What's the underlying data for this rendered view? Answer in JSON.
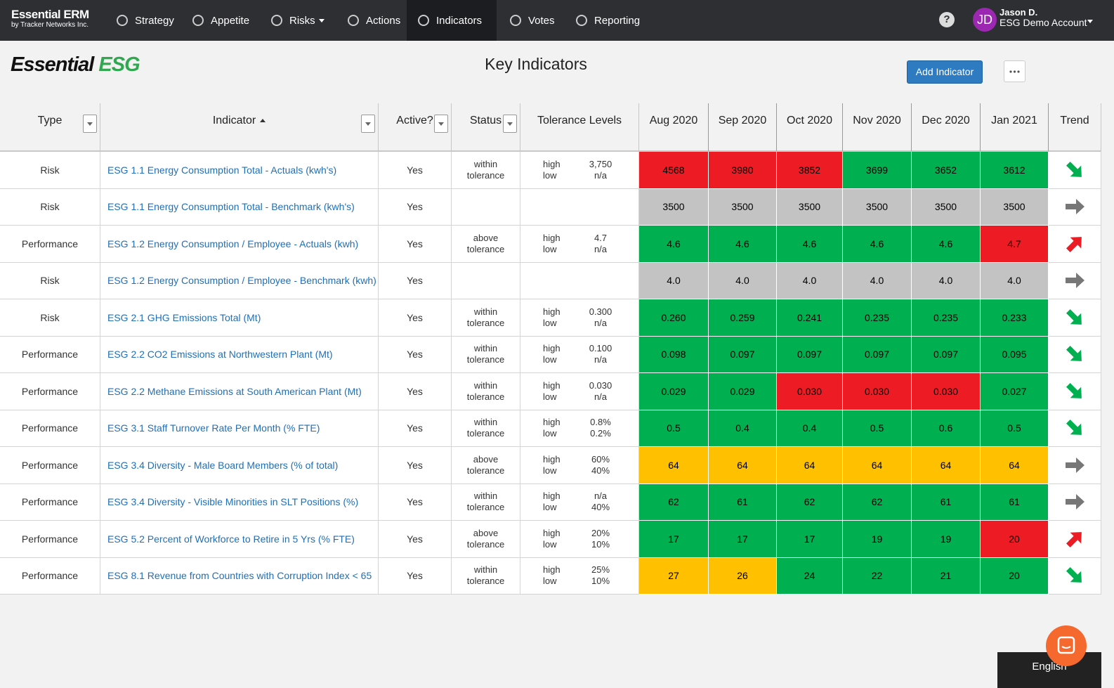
{
  "nav": {
    "brand": "Essential ERM",
    "brand_sub": "by Tracker Networks Inc.",
    "items": [
      "Strategy",
      "Appetite",
      "Risks",
      "Actions",
      "Indicators",
      "Votes",
      "Reporting"
    ],
    "active": 4,
    "dropdown": 2,
    "user": {
      "initials": "JD",
      "name": "Jason D.",
      "account": "ESG Demo Account"
    }
  },
  "header": {
    "logo": [
      "Essential",
      "ESG"
    ],
    "title": "Key Indicators",
    "button": "Add Indicator"
  },
  "table": {
    "columns": [
      "Type",
      "Indicator",
      "Active?",
      "Status",
      "Tolerance Levels",
      "Aug 2020",
      "Sep 2020",
      "Oct 2020",
      "Nov 2020",
      "Dec 2020",
      "Jan 2021",
      "Trend"
    ],
    "filter_columns": [
      0,
      1,
      2,
      3
    ],
    "sorted_column": 1,
    "tolerance_labels": [
      "high",
      "low"
    ],
    "rows": [
      {
        "type": "Risk",
        "indicator": "ESG 1.1 Energy Consumption Total - Actuals (kwh's)",
        "active": "Yes",
        "status": "within tolerance",
        "tolerance": [
          "3,750",
          "n/a"
        ],
        "values": [
          "4568",
          "3980",
          "3852",
          "3699",
          "3652",
          "3612"
        ],
        "colors": [
          "#ed1c24",
          "#ed1c24",
          "#ed1c24",
          "#00b050",
          "#00b050",
          "#00b050"
        ],
        "trend": "down"
      },
      {
        "type": "Risk",
        "indicator": "ESG 1.1 Energy Consumption Total - Benchmark (kwh's)",
        "active": "Yes",
        "status": null,
        "tolerance": null,
        "values": [
          "3500",
          "3500",
          "3500",
          "3500",
          "3500",
          "3500"
        ],
        "colors": [
          "#c3c3c3",
          "#c3c3c3",
          "#c3c3c3",
          "#c3c3c3",
          "#c3c3c3",
          "#c3c3c3"
        ],
        "trend": "flat"
      },
      {
        "type": "Performance",
        "indicator": "ESG 1.2 Energy Consumption / Employee - Actuals (kwh)",
        "active": "Yes",
        "status": "above tolerance",
        "tolerance": [
          "4.7",
          "n/a"
        ],
        "values": [
          "4.6",
          "4.6",
          "4.6",
          "4.6",
          "4.6",
          "4.7"
        ],
        "colors": [
          "#00b050",
          "#00b050",
          "#00b050",
          "#00b050",
          "#00b050",
          "#ed1c24"
        ],
        "trend": "up"
      },
      {
        "type": "Risk",
        "indicator": "ESG 1.2 Energy Consumption / Employee - Benchmark (kwh)",
        "active": "Yes",
        "status": null,
        "tolerance": null,
        "values": [
          "4.0",
          "4.0",
          "4.0",
          "4.0",
          "4.0",
          "4.0"
        ],
        "colors": [
          "#c3c3c3",
          "#c3c3c3",
          "#c3c3c3",
          "#c3c3c3",
          "#c3c3c3",
          "#c3c3c3"
        ],
        "trend": "flat"
      },
      {
        "type": "Risk",
        "indicator": "ESG 2.1 GHG Emissions Total (Mt)",
        "active": "Yes",
        "status": "within tolerance",
        "tolerance": [
          "0.300",
          "n/a"
        ],
        "values": [
          "0.260",
          "0.259",
          "0.241",
          "0.235",
          "0.235",
          "0.233"
        ],
        "colors": [
          "#00b050",
          "#00b050",
          "#00b050",
          "#00b050",
          "#00b050",
          "#00b050"
        ],
        "trend": "down"
      },
      {
        "type": "Performance",
        "indicator": "ESG 2.2 CO2 Emissions at Northwestern Plant (Mt)",
        "active": "Yes",
        "status": "within tolerance",
        "tolerance": [
          "0.100",
          "n/a"
        ],
        "values": [
          "0.098",
          "0.097",
          "0.097",
          "0.097",
          "0.097",
          "0.095"
        ],
        "colors": [
          "#00b050",
          "#00b050",
          "#00b050",
          "#00b050",
          "#00b050",
          "#00b050"
        ],
        "trend": "down"
      },
      {
        "type": "Performance",
        "indicator": "ESG 2.2 Methane Emissions at South American Plant (Mt)",
        "active": "Yes",
        "status": "within tolerance",
        "tolerance": [
          "0.030",
          "n/a"
        ],
        "values": [
          "0.029",
          "0.029",
          "0.030",
          "0.030",
          "0.030",
          "0.027"
        ],
        "colors": [
          "#00b050",
          "#00b050",
          "#ed1c24",
          "#ed1c24",
          "#ed1c24",
          "#00b050"
        ],
        "trend": "down"
      },
      {
        "type": "Performance",
        "indicator": "ESG 3.1 Staff Turnover Rate Per Month (% FTE)",
        "active": "Yes",
        "status": "within tolerance",
        "tolerance": [
          "0.8%",
          "0.2%"
        ],
        "values": [
          "0.5",
          "0.4",
          "0.4",
          "0.5",
          "0.6",
          "0.5"
        ],
        "colors": [
          "#00b050",
          "#00b050",
          "#00b050",
          "#00b050",
          "#00b050",
          "#00b050"
        ],
        "trend": "down"
      },
      {
        "type": "Performance",
        "indicator": "ESG 3.4 Diversity - Male Board Members (% of total)",
        "active": "Yes",
        "status": "above tolerance",
        "tolerance": [
          "60%",
          "40%"
        ],
        "values": [
          "64",
          "64",
          "64",
          "64",
          "64",
          "64"
        ],
        "colors": [
          "#ffc000",
          "#ffc000",
          "#ffc000",
          "#ffc000",
          "#ffc000",
          "#ffc000"
        ],
        "trend": "flat"
      },
      {
        "type": "Performance",
        "indicator": "ESG 3.4 Diversity - Visible Minorities in SLT Positions (%)",
        "active": "Yes",
        "status": "within tolerance",
        "tolerance": [
          "n/a",
          "40%"
        ],
        "values": [
          "62",
          "61",
          "62",
          "62",
          "61",
          "61"
        ],
        "colors": [
          "#00b050",
          "#00b050",
          "#00b050",
          "#00b050",
          "#00b050",
          "#00b050"
        ],
        "trend": "flat"
      },
      {
        "type": "Performance",
        "indicator": "ESG 5.2 Percent of Workforce to Retire in 5 Yrs (% FTE)",
        "active": "Yes",
        "status": "above tolerance",
        "tolerance": [
          "20%",
          "10%"
        ],
        "values": [
          "17",
          "17",
          "17",
          "19",
          "19",
          "20"
        ],
        "colors": [
          "#00b050",
          "#00b050",
          "#00b050",
          "#00b050",
          "#00b050",
          "#ed1c24"
        ],
        "trend": "up"
      },
      {
        "type": "Performance",
        "indicator": "ESG 8.1 Revenue from Countries with Corruption Index < 65",
        "active": "Yes",
        "status": "within tolerance",
        "tolerance": [
          "25%",
          "10%"
        ],
        "values": [
          "27",
          "26",
          "24",
          "22",
          "21",
          "20"
        ],
        "colors": [
          "#ffc000",
          "#ffc000",
          "#00b050",
          "#00b050",
          "#00b050",
          "#00b050"
        ],
        "trend": "down"
      }
    ]
  },
  "footer": {
    "language": "English"
  }
}
